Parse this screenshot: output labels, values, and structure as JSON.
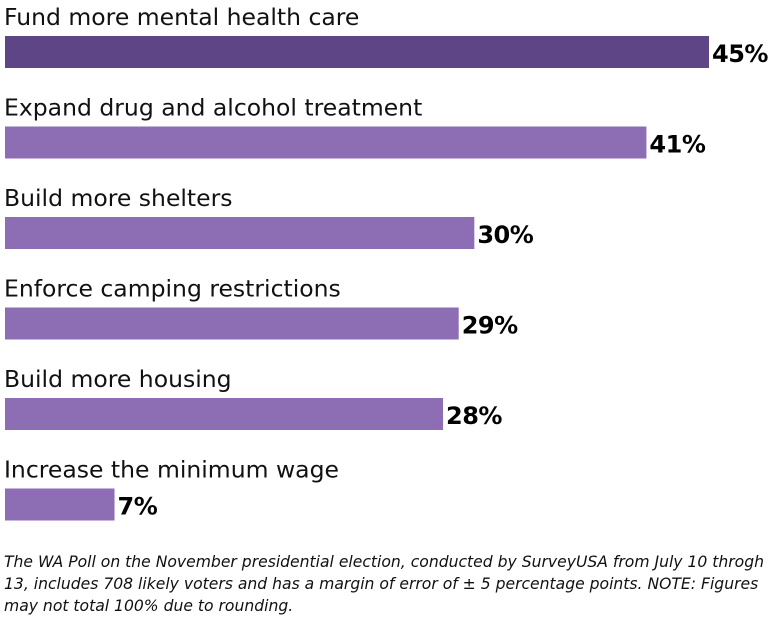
{
  "chart_data": {
    "type": "bar",
    "orientation": "horizontal",
    "categories": [
      "Fund more mental health care",
      "Expand drug and alcohol treatment",
      "Build more shelters",
      "Enforce camping restrictions",
      "Build more housing",
      "Increase the minimum wage"
    ],
    "values": [
      45,
      41,
      30,
      29,
      28,
      7
    ],
    "value_labels": [
      "45%",
      "41%",
      "30%",
      "29%",
      "28%",
      "7%"
    ],
    "unit": "%",
    "xlim": [
      0,
      45
    ],
    "grid": false,
    "legend": "none",
    "colors": {
      "highlight": "#5e4585",
      "bar": "#8d6db3"
    },
    "highlight_index": 0
  },
  "footnote": "The WA Poll on the November presidential election, conducted by SurveyUSA from July 10 throgh 13, includes 708 likely voters and has a margin of error of ± 5 percentage points. NOTE: Figures may not total 100% due to rounding."
}
